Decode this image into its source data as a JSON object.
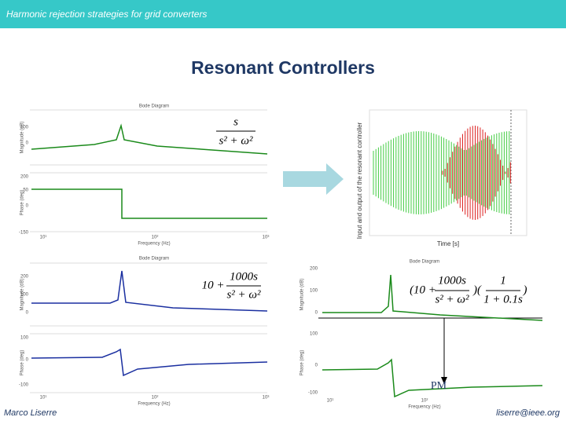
{
  "header": {
    "title": "Harmonic rejection strategies for grid converters"
  },
  "slide": {
    "title": "Resonant Controllers"
  },
  "plots": [
    {
      "title": "Bode Diagram",
      "y_labels": [
        "Magnitude (dB)",
        "Phase (deg)"
      ],
      "x_label": "Frequency (Hz)",
      "mag_ticks": [
        "100",
        "0"
      ],
      "phase_ticks": [
        "200",
        "50",
        "0",
        "-150"
      ],
      "x_ticks": [
        "10¹",
        "10²",
        "10³"
      ]
    },
    {
      "title": "Bode Diagram",
      "y_labels": [
        "Magnitude (dB)",
        "Phase (deg)"
      ],
      "x_label": "Frequency (Hz)",
      "mag_ticks": [
        "200",
        "100",
        "0"
      ],
      "phase_ticks": [
        "100",
        "0",
        "-100"
      ],
      "x_ticks": [
        "10¹",
        "10²",
        "10³"
      ]
    },
    {
      "title": "Bode Diagram",
      "y_labels": [
        "Magnitude (dB)",
        "Phase (deg)"
      ],
      "x_label": "Frequency (Hz)",
      "mag_ticks": [
        "200",
        "100",
        "0"
      ],
      "phase_ticks": [
        "100",
        "0",
        "-100"
      ],
      "x_ticks": [
        "10¹",
        "10²"
      ]
    },
    {
      "y_label": "Input and output of the resonant controller",
      "x_label": "Time [s]"
    }
  ],
  "formulas": {
    "f1": {
      "num": "s",
      "den": "s² + ω²"
    },
    "f2": {
      "lead": "10 +",
      "num": "1000s",
      "den": "s² + ω²"
    },
    "f3": {
      "open": "(10 +",
      "num": "1000s",
      "den": "s² + ω²",
      "mid": ")(",
      "num2": "1",
      "den2": "1 + 0.1s",
      "close": ")"
    }
  },
  "annotation": "PM",
  "footer": {
    "author": "Marco Liserre",
    "email": "liserre@ieee.org"
  }
}
